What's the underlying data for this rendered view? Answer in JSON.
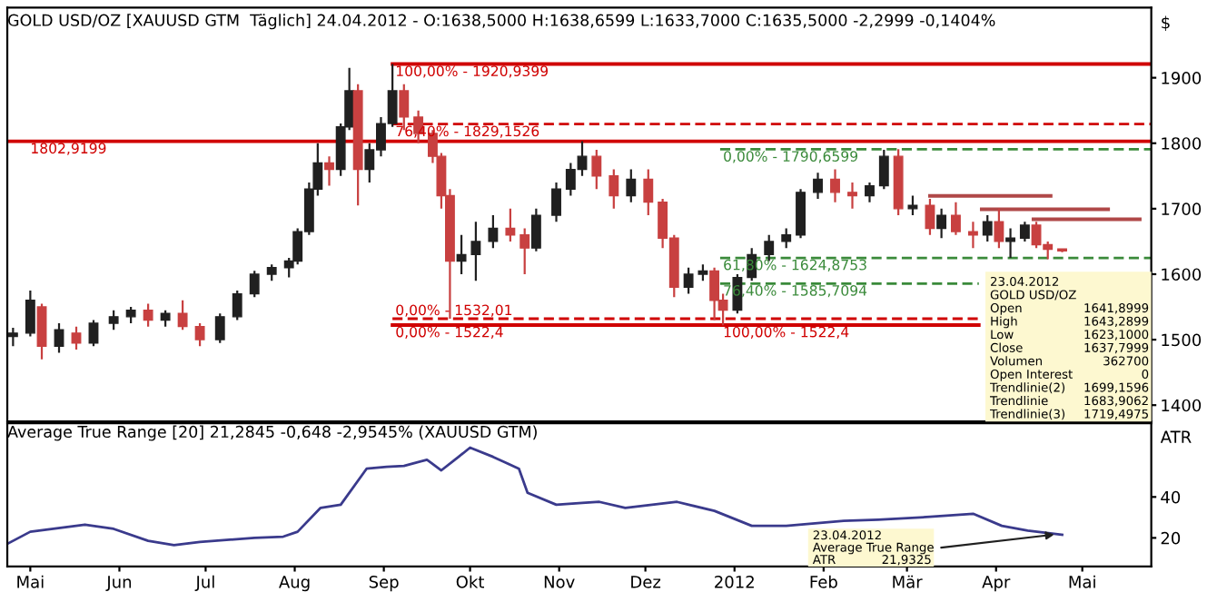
{
  "chart_data": [
    {
      "type": "candlestick",
      "title": "GOLD USD/OZ [XAUUSD GTM  Täglich] 24.04.2012 - O:1638,5000 H:1638,6599 L:1633,7000 C:1635,5000 -2,2999 -0,1404%",
      "ylabel": "$",
      "x": [
        "2011-04-25",
        "2011-05-01",
        "2011-05-05",
        "2011-05-11",
        "2011-05-17",
        "2011-05-23",
        "2011-05-30",
        "2011-06-05",
        "2011-06-11",
        "2011-06-17",
        "2011-06-23",
        "2011-06-29",
        "2011-07-06",
        "2011-07-12",
        "2011-07-18",
        "2011-07-24",
        "2011-07-30",
        "2011-08-02",
        "2011-08-06",
        "2011-08-09",
        "2011-08-13",
        "2011-08-17",
        "2011-08-20",
        "2011-08-23",
        "2011-08-27",
        "2011-08-31",
        "2011-09-04",
        "2011-09-08",
        "2011-09-13",
        "2011-09-18",
        "2011-09-21",
        "2011-09-24",
        "2011-09-28",
        "2011-10-03",
        "2011-10-09",
        "2011-10-15",
        "2011-10-20",
        "2011-10-24",
        "2011-10-31",
        "2011-11-05",
        "2011-11-09",
        "2011-11-14",
        "2011-11-20",
        "2011-11-26",
        "2011-12-02",
        "2011-12-07",
        "2011-12-11",
        "2011-12-16",
        "2011-12-21",
        "2011-12-25",
        "2011-12-28",
        "2012-01-02",
        "2012-01-07",
        "2012-01-13",
        "2012-01-19",
        "2012-01-24",
        "2012-01-30",
        "2012-02-05",
        "2012-02-11",
        "2012-02-17",
        "2012-02-22",
        "2012-02-27",
        "2012-03-03",
        "2012-03-09",
        "2012-03-13",
        "2012-03-18",
        "2012-03-24",
        "2012-03-29",
        "2012-04-02",
        "2012-04-06",
        "2012-04-11",
        "2012-04-15",
        "2012-04-19",
        "2012-04-24"
      ],
      "ohlc": [
        [
          1505,
          1518,
          1490,
          1510
        ],
        [
          1510,
          1575,
          1505,
          1560
        ],
        [
          1550,
          1555,
          1470,
          1490
        ],
        [
          1490,
          1525,
          1480,
          1515
        ],
        [
          1510,
          1520,
          1485,
          1495
        ],
        [
          1495,
          1530,
          1490,
          1525
        ],
        [
          1525,
          1545,
          1515,
          1535
        ],
        [
          1535,
          1550,
          1525,
          1545
        ],
        [
          1545,
          1555,
          1520,
          1530
        ],
        [
          1530,
          1545,
          1520,
          1540
        ],
        [
          1540,
          1560,
          1515,
          1520
        ],
        [
          1520,
          1525,
          1490,
          1500
        ],
        [
          1500,
          1540,
          1495,
          1535
        ],
        [
          1535,
          1575,
          1530,
          1570
        ],
        [
          1570,
          1605,
          1565,
          1600
        ],
        [
          1600,
          1615,
          1590,
          1610
        ],
        [
          1610,
          1625,
          1595,
          1620
        ],
        [
          1620,
          1670,
          1615,
          1665
        ],
        [
          1665,
          1740,
          1660,
          1730
        ],
        [
          1730,
          1800,
          1720,
          1770
        ],
        [
          1770,
          1780,
          1735,
          1760
        ],
        [
          1760,
          1830,
          1750,
          1825
        ],
        [
          1825,
          1915,
          1820,
          1880
        ],
        [
          1880,
          1890,
          1705,
          1760
        ],
        [
          1760,
          1800,
          1740,
          1790
        ],
        [
          1790,
          1840,
          1780,
          1830
        ],
        [
          1830,
          1921,
          1825,
          1880
        ],
        [
          1880,
          1890,
          1820,
          1840
        ],
        [
          1840,
          1850,
          1800,
          1815
        ],
        [
          1815,
          1820,
          1770,
          1780
        ],
        [
          1780,
          1785,
          1700,
          1720
        ],
        [
          1720,
          1730,
          1532,
          1620
        ],
        [
          1620,
          1660,
          1600,
          1630
        ],
        [
          1630,
          1680,
          1590,
          1650
        ],
        [
          1650,
          1690,
          1640,
          1670
        ],
        [
          1670,
          1700,
          1650,
          1660
        ],
        [
          1660,
          1670,
          1600,
          1640
        ],
        [
          1640,
          1700,
          1635,
          1690
        ],
        [
          1690,
          1740,
          1680,
          1730
        ],
        [
          1730,
          1770,
          1720,
          1760
        ],
        [
          1760,
          1803,
          1750,
          1780
        ],
        [
          1780,
          1790,
          1730,
          1750
        ],
        [
          1750,
          1760,
          1700,
          1720
        ],
        [
          1720,
          1760,
          1710,
          1745
        ],
        [
          1745,
          1760,
          1690,
          1710
        ],
        [
          1710,
          1715,
          1640,
          1655
        ],
        [
          1655,
          1660,
          1565,
          1580
        ],
        [
          1580,
          1610,
          1570,
          1600
        ],
        [
          1600,
          1615,
          1590,
          1605
        ],
        [
          1605,
          1610,
          1530,
          1560
        ],
        [
          1560,
          1570,
          1522,
          1545
        ],
        [
          1545,
          1600,
          1540,
          1595
        ],
        [
          1595,
          1640,
          1590,
          1630
        ],
        [
          1630,
          1660,
          1620,
          1650
        ],
        [
          1650,
          1670,
          1640,
          1660
        ],
        [
          1660,
          1730,
          1655,
          1725
        ],
        [
          1725,
          1755,
          1715,
          1745
        ],
        [
          1745,
          1760,
          1710,
          1725
        ],
        [
          1725,
          1740,
          1700,
          1720
        ],
        [
          1720,
          1740,
          1710,
          1735
        ],
        [
          1735,
          1790,
          1730,
          1780
        ],
        [
          1780,
          1791,
          1690,
          1700
        ],
        [
          1700,
          1720,
          1690,
          1705
        ],
        [
          1705,
          1715,
          1660,
          1670
        ],
        [
          1670,
          1700,
          1655,
          1690
        ],
        [
          1690,
          1710,
          1660,
          1665
        ],
        [
          1665,
          1680,
          1640,
          1660
        ],
        [
          1660,
          1690,
          1650,
          1680
        ],
        [
          1680,
          1700,
          1640,
          1650
        ],
        [
          1650,
          1670,
          1625,
          1655
        ],
        [
          1655,
          1680,
          1650,
          1675
        ],
        [
          1675,
          1680,
          1640,
          1645
        ],
        [
          1645,
          1650,
          1623,
          1638
        ],
        [
          1638.5,
          1638.66,
          1633.7,
          1635.5
        ]
      ],
      "colors": [
        "#202020",
        "#202020",
        "#c84040",
        "#202020",
        "#c84040",
        "#202020",
        "#202020",
        "#202020",
        "#c84040",
        "#202020",
        "#c84040",
        "#c84040",
        "#202020",
        "#202020",
        "#202020",
        "#202020",
        "#202020",
        "#202020",
        "#202020",
        "#202020",
        "#c84040",
        "#202020",
        "#202020",
        "#c84040",
        "#202020",
        "#202020",
        "#202020",
        "#c84040",
        "#c84040",
        "#c84040",
        "#c84040",
        "#c84040",
        "#202020",
        "#202020",
        "#202020",
        "#c84040",
        "#c84040",
        "#202020",
        "#202020",
        "#202020",
        "#202020",
        "#c84040",
        "#c84040",
        "#202020",
        "#c84040",
        "#c84040",
        "#c84040",
        "#202020",
        "#202020",
        "#c84040",
        "#c84040",
        "#202020",
        "#202020",
        "#202020",
        "#202020",
        "#202020",
        "#202020",
        "#c84040",
        "#c84040",
        "#202020",
        "#202020",
        "#c84040",
        "#202020",
        "#c84040",
        "#202020",
        "#c84040",
        "#c84040",
        "#202020",
        "#c84040",
        "#202020",
        "#202020",
        "#c84040",
        "#c84040",
        "#c84040"
      ],
      "series": [
        {
          "type": "line",
          "color": "#d00000",
          "line_style": "solid",
          "x": [
            "2011-09-04",
            "2012-05-25"
          ],
          "values": [
            1920.9399,
            1920.9399
          ]
        },
        {
          "type": "line",
          "color": "#d00000",
          "line_style": "dashed",
          "x": [
            "2011-09-04",
            "2012-05-25"
          ],
          "values": [
            1829.1526,
            1829.1526
          ]
        },
        {
          "type": "line",
          "color": "#d00000",
          "line_style": "solid",
          "x": [
            "2011-04-23",
            "2012-05-25"
          ],
          "values": [
            1802.9199,
            1802.9199
          ]
        },
        {
          "type": "line",
          "color": "#d00000",
          "line_style": "dashed",
          "x": [
            "2011-09-04",
            "2012-03-26"
          ],
          "values": [
            1532.01,
            1532.01
          ]
        },
        {
          "type": "line",
          "color": "#d00000",
          "line_style": "solid",
          "x": [
            "2011-09-04",
            "2012-03-26"
          ],
          "values": [
            1522.4,
            1522.4
          ]
        },
        {
          "type": "line",
          "color": "#3a8a3a",
          "line_style": "dashed",
          "x": [
            "2011-12-27",
            "2012-05-25"
          ],
          "values": [
            1790.6599,
            1790.6599
          ]
        },
        {
          "type": "line",
          "color": "#3a8a3a",
          "line_style": "dashed",
          "x": [
            "2011-12-27",
            "2012-05-25"
          ],
          "values": [
            1624.8753,
            1624.8753
          ]
        },
        {
          "type": "line",
          "color": "#3a8a3a",
          "line_style": "dashed",
          "x": [
            "2011-12-27",
            "2012-03-26"
          ],
          "values": [
            1585.7094,
            1585.7094
          ]
        },
        {
          "type": "line",
          "color": "#b04848",
          "line_style": "solid",
          "x": [
            "2012-03-09",
            "2012-04-20"
          ],
          "values": [
            1719.4975,
            1719.4975
          ]
        },
        {
          "type": "line",
          "color": "#b04848",
          "line_style": "solid",
          "x": [
            "2012-03-27",
            "2012-05-10"
          ],
          "values": [
            1699.1596,
            1699.1596
          ]
        },
        {
          "type": "line",
          "color": "#b04848",
          "line_style": "solid",
          "x": [
            "2012-04-14",
            "2012-05-21"
          ],
          "values": [
            1683.9062,
            1683.9062
          ]
        }
      ],
      "annotations": [
        {
          "text": "100,00% - 1920,9399",
          "x": "2011-09-04",
          "y": 1920.9399
        },
        {
          "text": "76,40% - 1829,1526",
          "x": "2011-09-04",
          "y": 1829.1526
        },
        {
          "text": "1802,9199",
          "x": "2011-04-30",
          "y": 1802.9199
        },
        {
          "text": "0,00% - 1532,01",
          "x": "2011-09-04",
          "y": 1532.01
        },
        {
          "text": "0,00% - 1522,4",
          "x": "2011-09-04",
          "y": 1522.4
        },
        {
          "text": "0,00% - 1790,6599",
          "x": "2011-12-27",
          "y": 1790.6599
        },
        {
          "text": "61,80% - 1624,8753",
          "x": "2011-12-27",
          "y": 1624.8753
        },
        {
          "text": "76,40% - 1585,7094",
          "x": "2011-12-27",
          "y": 1585.7094
        },
        {
          "text": "100,00% - 1522,4",
          "x": "2011-12-27",
          "y": 1522.4
        },
        "23.04.2012",
        "GOLD USD/OZ",
        "Open 1641,8999",
        "High 1643,2899",
        "Low 1623,1000",
        "Close 1637,7999",
        "Volumen 362700",
        "Open Interest 0",
        "Trendlinie(2) 1699,1596",
        "Trendlinie 1683,9062",
        "Trendlinie(3) 1719,4975"
      ],
      "xlim": [
        "2011-04-23",
        "2012-05-25"
      ],
      "ylim": [
        1375,
        2007
      ],
      "yticks": [
        1400,
        1500,
        1600,
        1700,
        1800,
        1900
      ],
      "tick_labels": "y",
      "grid": false,
      "legend": false
    },
    {
      "type": "line",
      "title": "Average True Range [20] 21,2845 -0,648 -2,9545% (XAUUSD GTM)",
      "ylabel": "ATR",
      "series": [
        {
          "color": "#3a3a8c",
          "x": [
            "2011-04-23",
            "2011-05-01",
            "2011-05-20",
            "2011-05-30",
            "2011-06-11",
            "2011-06-20",
            "2011-06-29",
            "2011-07-18",
            "2011-07-28",
            "2011-08-02",
            "2011-08-10",
            "2011-08-17",
            "2011-08-26",
            "2011-09-02",
            "2011-09-08",
            "2011-09-16",
            "2011-09-21",
            "2011-09-27",
            "2011-10-01",
            "2011-10-09",
            "2011-10-18",
            "2011-10-21",
            "2011-10-31",
            "2011-11-09",
            "2011-11-15",
            "2011-11-24",
            "2011-12-12",
            "2011-12-25",
            "2012-01-07",
            "2012-01-19",
            "2012-02-08",
            "2012-02-20",
            "2012-03-09",
            "2012-03-24",
            "2012-04-03",
            "2012-04-12",
            "2012-04-24"
          ],
          "values": [
            17.1,
            23.0,
            26.5,
            24.4,
            18.6,
            16.5,
            18.0,
            20.0,
            20.6,
            23.0,
            34.7,
            36.2,
            53.8,
            54.7,
            55.2,
            58.2,
            53.0,
            59.6,
            64.1,
            59.6,
            53.8,
            42.0,
            36.2,
            37.1,
            37.6,
            34.7,
            37.6,
            33.2,
            25.9,
            25.9,
            28.3,
            28.9,
            30.3,
            31.8,
            25.9,
            23.6,
            21.5
          ]
        }
      ],
      "annotations": [
        "23.04.2012",
        {
          "text": "Average True Range",
          "x": "2012-04-23",
          "y": 21.9325
        },
        "ATR 21,9325"
      ],
      "xlim": [
        "2011-04-23",
        "2012-05-25"
      ],
      "xticks": [
        {
          "value": "2011-05-01",
          "label": "Mai"
        },
        {
          "value": "2011-06-01",
          "label": "Jun"
        },
        {
          "value": "2011-07-01",
          "label": "Jul"
        },
        {
          "value": "2011-08-01",
          "label": "Aug"
        },
        {
          "value": "2011-09-01",
          "label": "Sep"
        },
        {
          "value": "2011-10-01",
          "label": "Okt"
        },
        {
          "value": "2011-11-01",
          "label": "Nov"
        },
        {
          "value": "2011-12-01",
          "label": "Dez"
        },
        {
          "value": "2012-01-01",
          "label": "2012"
        },
        {
          "value": "2012-02-01",
          "label": "Feb"
        },
        {
          "value": "2012-03-01",
          "label": "Mär"
        },
        {
          "value": "2012-04-01",
          "label": "Apr"
        },
        {
          "value": "2012-05-01",
          "label": "Mai"
        }
      ],
      "ylim": [
        6,
        76
      ],
      "yticks": [
        20,
        40
      ],
      "grid": false,
      "legend": false,
      "marker": "none",
      "line_style": "solid"
    }
  ]
}
